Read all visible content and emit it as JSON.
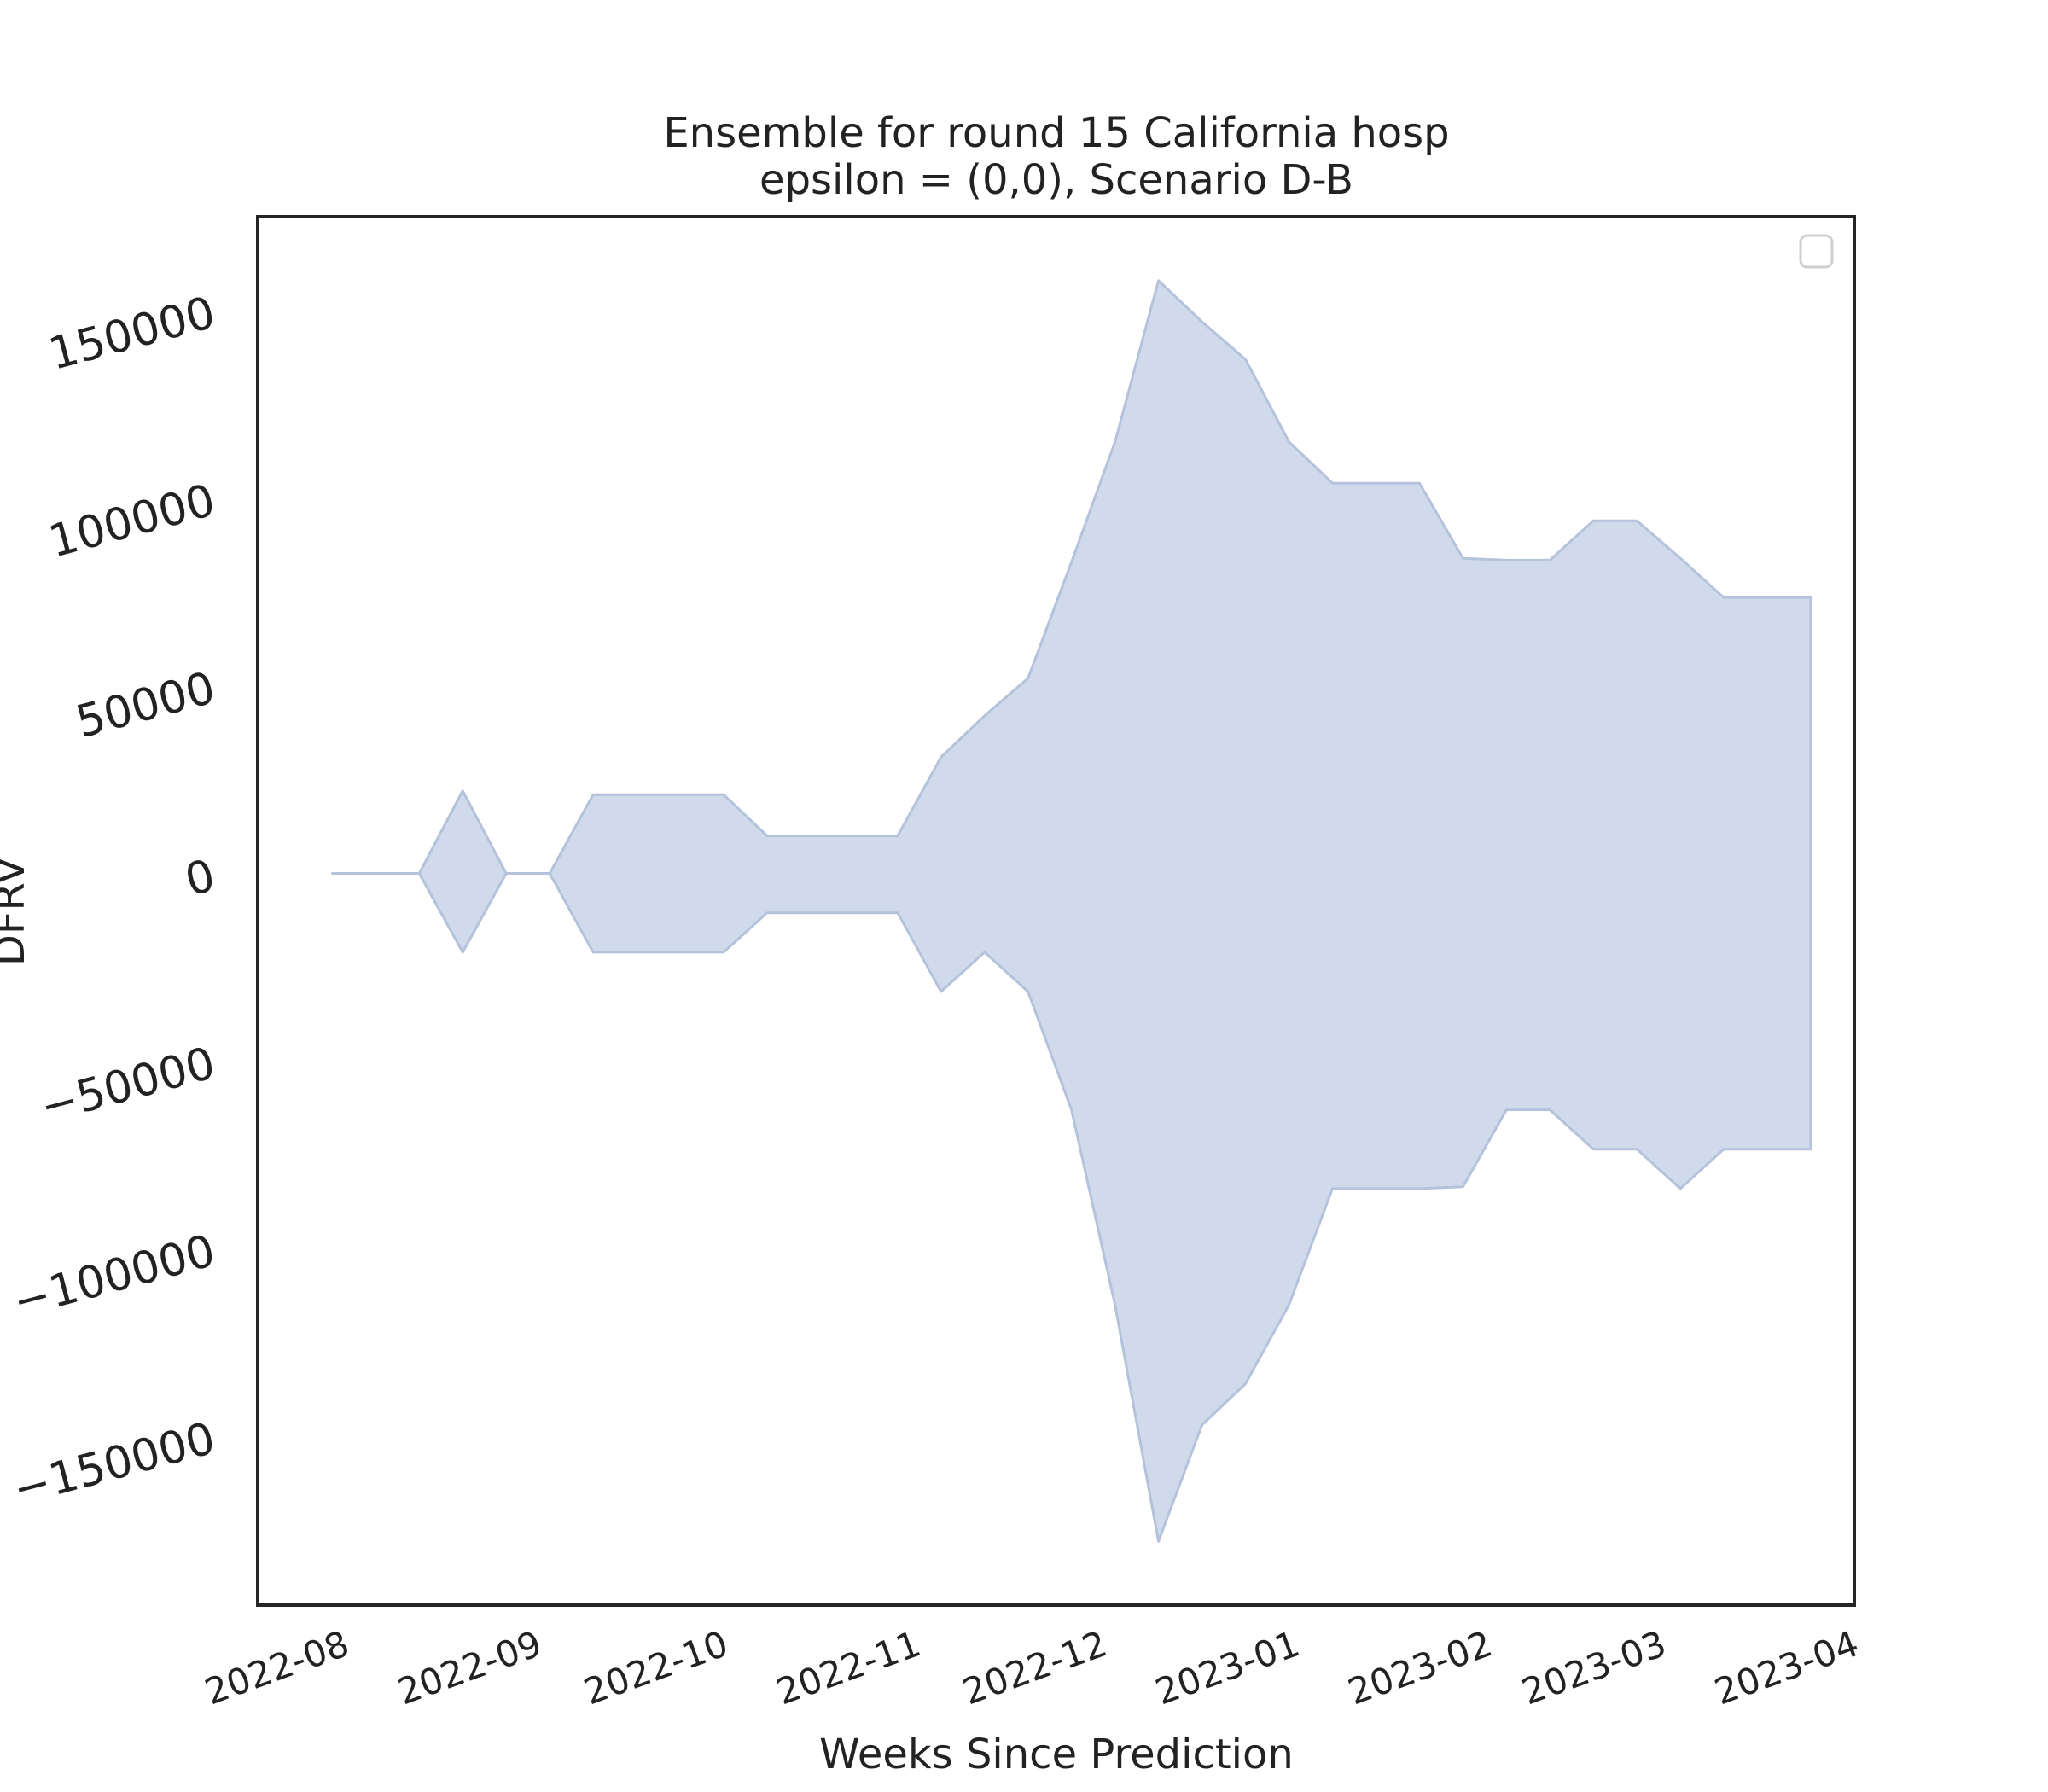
{
  "chart_data": {
    "type": "area",
    "title_lines": [
      "Ensemble for round 15 California hosp",
      "epsilon = (0,0), Scenario D-B"
    ],
    "xlabel": "Weeks Since Prediction",
    "ylabel": "DFRV",
    "x_tick_labels": [
      "2022-08",
      "2022-09",
      "2022-10",
      "2022-11",
      "2022-12",
      "2023-01",
      "2023-02",
      "2023-03",
      "2023-04"
    ],
    "x_tick_dates": [
      "2022-08-01",
      "2022-09-01",
      "2022-10-01",
      "2022-11-01",
      "2022-12-01",
      "2023-01-01",
      "2023-02-01",
      "2023-03-01",
      "2023-04-01"
    ],
    "xlim": [
      "2022-07-18",
      "2023-04-01"
    ],
    "y_ticks": [
      150000,
      100000,
      50000,
      0,
      -50000,
      -100000,
      -150000
    ],
    "y_tick_labels": [
      "150000",
      "100000",
      "50000",
      "0",
      "−50000",
      "−100000",
      "−150000"
    ],
    "ylim": [
      -195000,
      175000
    ],
    "legend": {
      "position": "upper right",
      "entries": []
    },
    "grid": false,
    "fill_color": "#c9d3e8",
    "edge_color": "#b4c2dc",
    "band": {
      "x": [
        "2022-07-30",
        "2022-08-13",
        "2022-08-20",
        "2022-08-27",
        "2022-09-03",
        "2022-09-10",
        "2022-09-17",
        "2022-09-24",
        "2022-10-01",
        "2022-10-08",
        "2022-10-15",
        "2022-10-22",
        "2022-10-29",
        "2022-11-05",
        "2022-11-12",
        "2022-11-19",
        "2022-11-26",
        "2022-12-03",
        "2022-12-10",
        "2022-12-17",
        "2022-12-24",
        "2022-12-31",
        "2023-01-07",
        "2023-01-14",
        "2023-01-21",
        "2023-01-28",
        "2023-02-04",
        "2023-02-11",
        "2023-02-18",
        "2023-02-25",
        "2023-03-04",
        "2023-03-11",
        "2023-03-18",
        "2023-03-25"
      ],
      "upper": [
        0,
        0,
        22000,
        0,
        0,
        21000,
        21000,
        21000,
        21000,
        10000,
        10000,
        10000,
        10000,
        31000,
        42000,
        52000,
        83000,
        115000,
        158000,
        147000,
        137000,
        115000,
        104000,
        104000,
        104000,
        84000,
        83500,
        83500,
        94000,
        94000,
        84000,
        73500,
        73500,
        73500
      ],
      "lower": [
        0,
        0,
        -21000,
        0,
        0,
        -21000,
        -21000,
        -21000,
        -21000,
        -10500,
        -10500,
        -10500,
        -10500,
        -31500,
        -21000,
        -31500,
        -63000,
        -115000,
        -178000,
        -147000,
        -136000,
        -115000,
        -84000,
        -84000,
        -84000,
        -83500,
        -63000,
        -63000,
        -73500,
        -73500,
        -84000,
        -73500,
        -73500,
        -73500
      ]
    }
  }
}
